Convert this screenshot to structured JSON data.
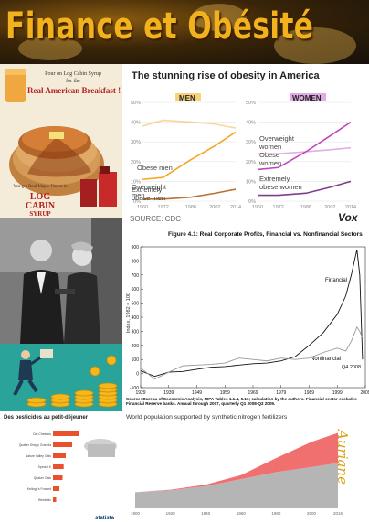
{
  "banner": {
    "title": "Finance et Obésité"
  },
  "ad": {
    "line1": "Pour on Log Cabin Syrup",
    "line2": "for the",
    "line3": "Real American Breakfast !",
    "line4": "You get Real Maple Flavor in",
    "brand1": "LOG",
    "brand2": "CABIN",
    "brand3": "SYRUP"
  },
  "obesity": {
    "title": "The stunning rise of obesity in America",
    "source": "SOURCE: CDC",
    "logo": "Vox",
    "men_label": "MEN",
    "women_label": "WOMEN",
    "colors": {
      "men": "#f5a623",
      "women": "#c044c0",
      "men_tag": "#f8d27a",
      "women_tag": "#e3a9e6"
    },
    "men_series": {
      "overweight": "Overweight\nmen",
      "obese": "Obese men",
      "extreme": "Extremely\nobese men"
    },
    "women_series": {
      "overweight": "Overweight\nwomen",
      "obese": "Obese\nwomen",
      "extreme": "Extremely\nobese women"
    },
    "y_ticks": [
      "50%",
      "40%",
      "30%",
      "20%",
      "10%",
      "0%"
    ],
    "x_ticks": [
      "1960",
      "1972",
      "1988",
      "2002",
      "2014"
    ]
  },
  "chart_data": [
    {
      "type": "line",
      "title": "The stunning rise of obesity in America",
      "panel": "MEN",
      "x": [
        1960,
        1972,
        1988,
        2002,
        2014
      ],
      "series": [
        {
          "name": "Overweight men",
          "values": [
            38,
            41,
            40,
            39,
            37
          ]
        },
        {
          "name": "Obese men",
          "values": [
            11,
            12,
            21,
            28,
            35
          ]
        },
        {
          "name": "Extremely obese men",
          "values": [
            1,
            1,
            2,
            4,
            6
          ]
        }
      ],
      "ylim": [
        0,
        50
      ]
    },
    {
      "type": "line",
      "panel": "WOMEN",
      "x": [
        1960,
        1972,
        1988,
        2002,
        2014
      ],
      "series": [
        {
          "name": "Overweight women",
          "values": [
            24,
            24,
            25,
            26,
            27
          ]
        },
        {
          "name": "Obese women",
          "values": [
            16,
            17,
            25,
            33,
            40
          ]
        },
        {
          "name": "Extremely obese women",
          "values": [
            3,
            3,
            4,
            7,
            10
          ]
        }
      ],
      "ylim": [
        0,
        50
      ]
    },
    {
      "type": "line",
      "title": "Figure 4.1: Real Corporate Profits, Financial vs. Nonfinancial Sectors",
      "ylabel": "Index, 1982 = 100",
      "x": [
        1929,
        1934,
        1939,
        1944,
        1949,
        1954,
        1959,
        1964,
        1969,
        1974,
        1979,
        1984,
        1989,
        1994,
        1999,
        2002,
        2004,
        2006,
        2007,
        2008
      ],
      "series": [
        {
          "name": "Financial",
          "values": [
            20,
            -20,
            10,
            15,
            30,
            45,
            50,
            60,
            70,
            75,
            90,
            120,
            200,
            290,
            420,
            550,
            700,
            880,
            700,
            100
          ]
        },
        {
          "name": "Nonfinancial",
          "values": [
            40,
            -40,
            10,
            55,
            60,
            65,
            75,
            110,
            100,
            90,
            110,
            100,
            110,
            150,
            180,
            160,
            230,
            330,
            300,
            250
          ]
        }
      ],
      "annotation": "Q4 2008",
      "ylim": [
        -100,
        900
      ],
      "y_ticks": [
        -100,
        0,
        100,
        200,
        300,
        400,
        500,
        600,
        700,
        800,
        900
      ],
      "x_ticks": [
        1929,
        1939,
        1949,
        1959,
        1969,
        1979,
        1989,
        1999,
        2009
      ]
    },
    {
      "type": "area",
      "title": "World population supported by synthetic nitrogen fertilizers",
      "x": [
        1900,
        1920,
        1940,
        1960,
        1980,
        2000,
        2015
      ],
      "series": [
        {
          "name": "Population supported",
          "values": [
            1.6,
            1.8,
            2.2,
            2.9,
            3.6,
            4.1,
            4.5
          ]
        },
        {
          "name": "Population supported by synthetic nitrogen fertilizers",
          "values": [
            0,
            0.05,
            0.15,
            0.4,
            1.4,
            2.5,
            3.0
          ]
        }
      ],
      "x_ticks": [
        "1900",
        "1920",
        "1940",
        "1960",
        "1980",
        "2000",
        "2015"
      ]
    },
    {
      "type": "bar",
      "title": "Des pesticides au petit-déjeuner",
      "categories": [
        "Oat Cheerios",
        "Quaker Simply Granola",
        "Nature Valley Oats",
        "Special K",
        "Quaker Oats",
        "Kellogg's Frosted",
        "Weetabix"
      ],
      "values": [
        1.2,
        0.9,
        0.6,
        0.5,
        0.45,
        0.3,
        0.15
      ]
    }
  ],
  "profits": {
    "title": "Figure 4.1: Real Corporate Profits, Financial vs. Nonfinancial Sectors",
    "ylabel": "Index, 1982 = 100",
    "financial_label": "Financial",
    "nonfinancial_label": "Nonfinancial",
    "q4_label": "Q4 2008",
    "source": "Source: Bureau of Economic Analysis, NIPA Tables 1.1.4, 6.16; calculation by the authors. Financial sector excludes Financial Reserve banks. Annual through 2007, quarterly Q1 2008-Q3 2009."
  },
  "pesticides": {
    "title": "Des pesticides au petit-déjeuner",
    "logo": "statista"
  },
  "population": {
    "title": "World population supported by synthetic nitrogen fertilizers",
    "colors": {
      "total": "#b5b5b5",
      "fert": "#f07070"
    }
  },
  "signature": "Auriane"
}
